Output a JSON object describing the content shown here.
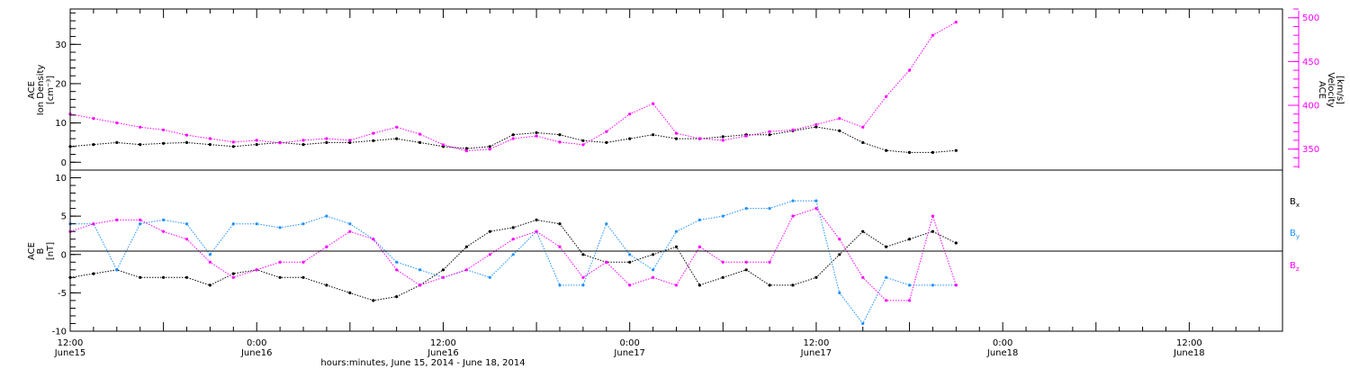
{
  "chart_data": [
    {
      "type": "scatter",
      "panel": "top",
      "ylabel_left": [
        "ACE",
        "Ion Density",
        "[cm⁻³]"
      ],
      "ylabel_right": [
        "ACE",
        "Velocity",
        "[km/s]"
      ],
      "ylim_left": [
        -2,
        39
      ],
      "yticks_left": [
        0,
        10,
        20,
        30
      ],
      "ylim_right": [
        326,
        510
      ],
      "yticks_right": [
        350,
        400,
        450,
        500
      ],
      "colors": {
        "density": "#000000",
        "velocity": "#ff00ff"
      },
      "series": [
        {
          "key": "density",
          "axis": "left",
          "color": "#000000",
          "x": [
            0,
            3,
            6,
            9,
            12,
            15,
            18,
            21,
            24,
            27,
            30,
            33,
            36,
            39,
            42,
            45,
            48,
            51,
            54,
            57,
            60,
            63,
            66,
            69,
            72,
            75,
            78,
            81,
            84,
            87,
            90,
            93,
            96,
            99,
            102,
            105,
            108,
            111,
            114
          ],
          "values": [
            4,
            4.5,
            5,
            4.5,
            4.8,
            5,
            4.5,
            4,
            4.5,
            5,
            4.5,
            5,
            5,
            5.5,
            6,
            5,
            4,
            3.5,
            4,
            7,
            7.5,
            7,
            5.5,
            5,
            6,
            7,
            6,
            6,
            6.5,
            7,
            7,
            8,
            9,
            8,
            5,
            3,
            2.5,
            2.5,
            3
          ]
        },
        {
          "key": "velocity",
          "axis": "right",
          "color": "#ff00ff",
          "x": [
            0,
            3,
            6,
            9,
            12,
            15,
            18,
            21,
            24,
            27,
            30,
            33,
            36,
            39,
            42,
            45,
            48,
            51,
            54,
            57,
            60,
            63,
            66,
            69,
            72,
            75,
            78,
            81,
            84,
            87,
            90,
            93,
            96,
            99,
            102,
            105,
            108,
            111,
            114
          ],
          "values": [
            390,
            385,
            380,
            375,
            372,
            366,
            362,
            358,
            360,
            357,
            360,
            362,
            360,
            368,
            375,
            367,
            355,
            348,
            350,
            362,
            365,
            358,
            355,
            370,
            390,
            402,
            368,
            362,
            360,
            365,
            370,
            372,
            378,
            385,
            375,
            410,
            440,
            480,
            495
          ]
        }
      ]
    },
    {
      "type": "scatter",
      "panel": "bottom",
      "ylabel_left": [
        "ACE",
        "B",
        "[nT]"
      ],
      "ylim": [
        -10,
        11
      ],
      "yticks": [
        -10,
        -5,
        0,
        5,
        10
      ],
      "legend": [
        {
          "label": "B",
          "sub": "x",
          "color": "#000000"
        },
        {
          "label": "B",
          "sub": "y",
          "color": "#1e90ff"
        },
        {
          "label": "B",
          "sub": "z",
          "color": "#ff00ff"
        }
      ],
      "series": [
        {
          "key": "Bx",
          "color": "#000000",
          "x": [
            0,
            3,
            6,
            9,
            12,
            15,
            18,
            21,
            24,
            27,
            30,
            33,
            36,
            39,
            42,
            45,
            48,
            51,
            54,
            57,
            60,
            63,
            66,
            69,
            72,
            75,
            78,
            81,
            84,
            87,
            90,
            93,
            96,
            99,
            102,
            105,
            108,
            111,
            114
          ],
          "values": [
            -3,
            -2.5,
            -2,
            -3,
            -3,
            -3,
            -4,
            -2.5,
            -2,
            -3,
            -3,
            -4,
            -5,
            -6,
            -5.5,
            -4,
            -2,
            1,
            3,
            3.5,
            4.5,
            4,
            0,
            -1,
            -1,
            0,
            1,
            -4,
            -3,
            -2,
            -4,
            -4,
            -3,
            0,
            3,
            1,
            2,
            3,
            1.5
          ]
        },
        {
          "key": "By",
          "color": "#1e90ff",
          "x": [
            0,
            3,
            6,
            9,
            12,
            15,
            18,
            21,
            24,
            27,
            30,
            33,
            36,
            39,
            42,
            45,
            48,
            51,
            54,
            57,
            60,
            63,
            66,
            69,
            72,
            75,
            78,
            81,
            84,
            87,
            90,
            93,
            96,
            99,
            102,
            105,
            108,
            111,
            114
          ],
          "values": [
            4,
            4,
            -2,
            4,
            4.5,
            4,
            0,
            4,
            4,
            3.5,
            4,
            5,
            4,
            2,
            -1,
            -2,
            -3,
            -2,
            -3,
            0,
            3,
            -4,
            -4,
            4,
            0,
            -2,
            3,
            4.5,
            5,
            6,
            6,
            7,
            7,
            -5,
            -9,
            -3,
            -4,
            -4,
            -4
          ]
        },
        {
          "key": "Bz",
          "color": "#ff00ff",
          "x": [
            0,
            3,
            6,
            9,
            12,
            15,
            18,
            21,
            24,
            27,
            30,
            33,
            36,
            39,
            42,
            45,
            48,
            51,
            54,
            57,
            60,
            63,
            66,
            69,
            72,
            75,
            78,
            81,
            84,
            87,
            90,
            93,
            96,
            99,
            102,
            105,
            108,
            111,
            114
          ],
          "values": [
            3,
            4,
            4.5,
            4.5,
            3,
            2,
            -1,
            -3,
            -2,
            -1,
            -1,
            1,
            3,
            2,
            -2,
            -4,
            -3,
            -2,
            0,
            2,
            3,
            1,
            -3,
            -1,
            -4,
            -3,
            -4,
            1,
            -1,
            -1,
            -1,
            5,
            6,
            2,
            -3,
            -6,
            -6,
            5,
            -4
          ]
        }
      ]
    }
  ],
  "x_axis": {
    "ticks": [
      {
        "top": "12:00",
        "bottom": "June15"
      },
      {
        "top": "0:00",
        "bottom": "June16"
      },
      {
        "top": "12:00",
        "bottom": "June16"
      },
      {
        "top": "0:00",
        "bottom": "June17"
      },
      {
        "top": "12:00",
        "bottom": "June17"
      },
      {
        "top": "0:00",
        "bottom": "June18"
      },
      {
        "top": "12:00",
        "bottom": "June18"
      }
    ],
    "xlabel": "hours:minutes, June 15, 2014 - June 18, 2014"
  }
}
